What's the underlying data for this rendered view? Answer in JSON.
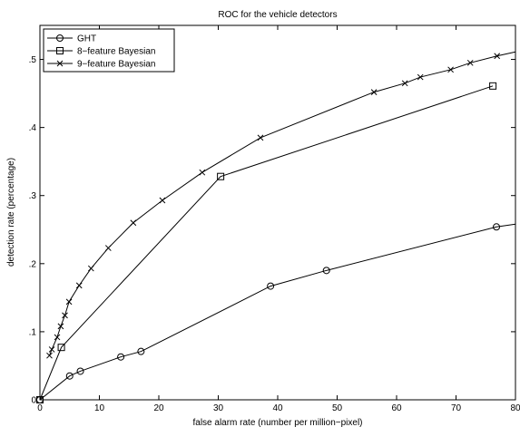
{
  "chart_data": {
    "type": "line",
    "title": "ROC for the vehicle detectors",
    "xlabel": "false alarm rate (number per million−pixel)",
    "ylabel": "detection rate (percentage)",
    "xlim": [
      0,
      80
    ],
    "ylim": [
      0,
      0.55
    ],
    "xticks": [
      0,
      10,
      20,
      30,
      40,
      50,
      60,
      70,
      80
    ],
    "yticks": [
      0,
      0.1,
      0.2,
      0.3,
      0.4,
      0.5
    ],
    "grid": false,
    "legend_position": "top-left",
    "series": [
      {
        "name": "GHT",
        "marker": "circle",
        "x": [
          0,
          5.0,
          6.8,
          13.6,
          17.0,
          38.8,
          48.2,
          76.8,
          80
        ],
        "y": [
          0,
          0.035,
          0.042,
          0.063,
          0.071,
          0.167,
          0.19,
          0.254,
          0.258
        ],
        "marker_indices": [
          0,
          1,
          2,
          3,
          4,
          5,
          6,
          7
        ]
      },
      {
        "name": "8−feature Bayesian",
        "marker": "square",
        "x": [
          0,
          3.6,
          30.4,
          76.2
        ],
        "y": [
          0,
          0.077,
          0.328,
          0.461
        ],
        "marker_indices": [
          0,
          1,
          2,
          3
        ]
      },
      {
        "name": "9−feature Bayesian",
        "marker": "x",
        "x": [
          1.6,
          2.0,
          2.9,
          3.5,
          4.2,
          4.9,
          6.6,
          8.6,
          11.5,
          15.7,
          20.6,
          27.3,
          37.1,
          56.2,
          61.4,
          64.0,
          69.1,
          72.4,
          76.9,
          80
        ],
        "y": [
          0.065,
          0.074,
          0.092,
          0.108,
          0.124,
          0.144,
          0.168,
          0.193,
          0.223,
          0.26,
          0.293,
          0.334,
          0.385,
          0.452,
          0.465,
          0.474,
          0.485,
          0.495,
          0.505,
          0.511
        ],
        "marker_indices": [
          0,
          1,
          2,
          3,
          4,
          5,
          6,
          7,
          8,
          9,
          10,
          11,
          12,
          13,
          14,
          15,
          16,
          17,
          18
        ]
      }
    ]
  }
}
